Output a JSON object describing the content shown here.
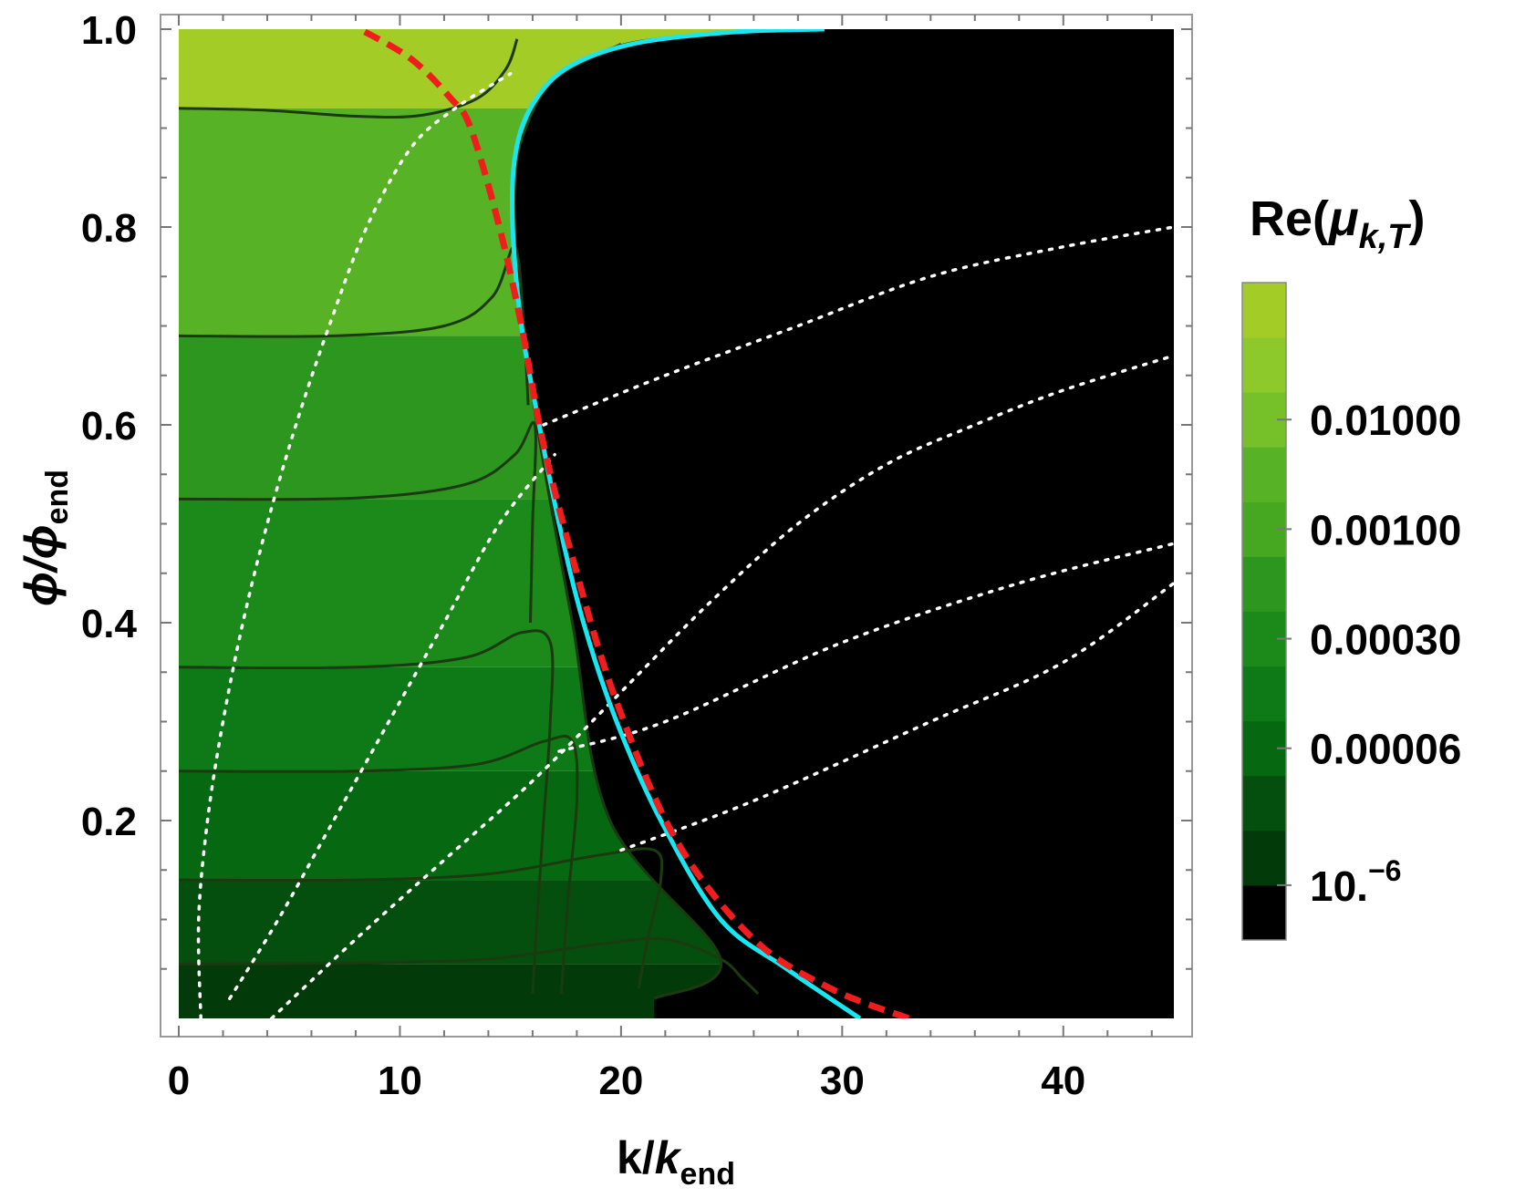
{
  "chart_data": {
    "type": "heatmap",
    "x": {
      "label_main": "k/",
      "label_italic": "k",
      "label_sub": "end",
      "range": [
        0,
        45
      ],
      "ticks": [
        0,
        10,
        20,
        30,
        40
      ],
      "minor_step": 2
    },
    "y": {
      "label_main": "ϕ/ϕ",
      "label_sub": "end",
      "range": [
        0.0,
        1.0
      ],
      "ticks": [
        0.2,
        0.4,
        0.6,
        0.8,
        1.0
      ],
      "tick_labels": [
        "0.2",
        "0.4",
        "0.6",
        "0.8",
        "1.0"
      ],
      "minor_step": 0.05
    },
    "colorbar": {
      "title_prefix": "Re(",
      "title_mu": "μ",
      "title_sub": "k,T",
      "title_suffix": ")",
      "bands": [
        "#000000",
        "#023a09",
        "#044f0d",
        "#066912",
        "#0d7a17",
        "#1b8a1b",
        "#2d961e",
        "#46a820",
        "#58b225",
        "#76c02a",
        "#8ec92c",
        "#a3cc27"
      ],
      "labels": [
        {
          "text": "0.01000",
          "at_band": 9.5
        },
        {
          "text": "0.00100",
          "at_band": 7.5
        },
        {
          "text": "0.00030",
          "at_band": 5.5
        },
        {
          "text": "0.00006",
          "at_band": 3.5
        },
        {
          "text": "10.",
          "sup": "−6",
          "at_band": 1.0
        }
      ]
    },
    "region_boundary": [
      [
        21.5,
        0.02
      ],
      [
        24.5,
        0.06
      ],
      [
        19.5,
        0.2
      ],
      [
        17.8,
        0.4
      ],
      [
        16.2,
        0.6
      ],
      [
        15.3,
        0.75
      ],
      [
        15.2,
        0.85
      ],
      [
        15.7,
        0.9
      ],
      [
        17.0,
        0.95
      ],
      [
        20.0,
        0.985
      ],
      [
        25.0,
        0.998
      ],
      [
        29.0,
        1.0
      ]
    ],
    "contours": [
      {
        "y0": 0.055,
        "pts": [
          [
            0,
            0.055
          ],
          [
            8,
            0.056
          ],
          [
            14,
            0.06
          ],
          [
            19,
            0.075
          ],
          [
            22,
            0.08
          ],
          [
            24.5,
            0.06
          ],
          [
            25.5,
            0.04
          ],
          [
            26.2,
            0.025
          ]
        ]
      },
      {
        "y0": 0.14,
        "pts": [
          [
            0,
            0.14
          ],
          [
            8,
            0.14
          ],
          [
            14,
            0.146
          ],
          [
            19,
            0.165
          ],
          [
            21.5,
            0.17
          ],
          [
            21.8,
            0.14
          ],
          [
            21.2,
            0.08
          ],
          [
            20.8,
            0.03
          ]
        ]
      },
      {
        "y0": 0.25,
        "pts": [
          [
            0,
            0.25
          ],
          [
            8,
            0.25
          ],
          [
            13.5,
            0.257
          ],
          [
            16.5,
            0.28
          ],
          [
            17.8,
            0.28
          ],
          [
            18,
            0.22
          ],
          [
            17.6,
            0.12
          ],
          [
            17.3,
            0.025
          ]
        ]
      },
      {
        "y0": 0.355,
        "pts": [
          [
            0,
            0.355
          ],
          [
            8,
            0.355
          ],
          [
            13,
            0.365
          ],
          [
            15.5,
            0.39
          ],
          [
            16.8,
            0.38
          ],
          [
            16.8,
            0.3
          ],
          [
            16.5,
            0.2
          ],
          [
            16.2,
            0.1
          ],
          [
            16.0,
            0.025
          ]
        ]
      },
      {
        "y0": 0.525,
        "pts": [
          [
            0,
            0.525
          ],
          [
            8,
            0.526
          ],
          [
            13,
            0.54
          ],
          [
            15.2,
            0.57
          ],
          [
            16.1,
            0.6
          ],
          [
            16.0,
            0.5
          ],
          [
            15.9,
            0.4
          ]
        ]
      },
      {
        "y0": 0.69,
        "pts": [
          [
            0,
            0.69
          ],
          [
            7,
            0.69
          ],
          [
            12,
            0.7
          ],
          [
            14.2,
            0.73
          ],
          [
            15.2,
            0.78
          ],
          [
            15.6,
            0.7
          ],
          [
            15.8,
            0.62
          ]
        ]
      },
      {
        "y0": 0.92,
        "pts": [
          [
            0,
            0.92
          ],
          [
            4,
            0.918
          ],
          [
            8,
            0.912
          ],
          [
            11,
            0.913
          ],
          [
            13.5,
            0.93
          ],
          [
            14.8,
            0.96
          ],
          [
            15.3,
            0.99
          ]
        ]
      }
    ],
    "cyan_curve": [
      [
        30.8,
        0.0
      ],
      [
        27.5,
        0.05
      ],
      [
        24.5,
        0.1
      ],
      [
        21.8,
        0.2
      ],
      [
        19.8,
        0.3
      ],
      [
        18.3,
        0.4
      ],
      [
        17.2,
        0.5
      ],
      [
        16.3,
        0.6
      ],
      [
        15.5,
        0.7
      ],
      [
        15.1,
        0.8
      ],
      [
        15.2,
        0.87
      ],
      [
        15.9,
        0.92
      ],
      [
        17.5,
        0.96
      ],
      [
        20.5,
        0.985
      ],
      [
        25,
        0.997
      ],
      [
        29.2,
        1.0
      ]
    ],
    "red_dashed_curve": [
      [
        33.0,
        0.0
      ],
      [
        29.5,
        0.03
      ],
      [
        26,
        0.08
      ],
      [
        22.5,
        0.18
      ],
      [
        19.8,
        0.32
      ],
      [
        18,
        0.45
      ],
      [
        16.5,
        0.58
      ],
      [
        15.5,
        0.7
      ],
      [
        14.5,
        0.8
      ],
      [
        13.2,
        0.9
      ],
      [
        12.3,
        0.93
      ],
      [
        10.5,
        0.97
      ],
      [
        8.2,
        1.0
      ]
    ],
    "white_dotted_curves": [
      {
        "pts": [
          [
            1.0,
            0.0
          ],
          [
            0.9,
            0.1
          ],
          [
            1.3,
            0.2
          ],
          [
            2.0,
            0.3
          ],
          [
            2.9,
            0.4
          ],
          [
            4.0,
            0.5
          ],
          [
            5.3,
            0.6
          ],
          [
            6.8,
            0.7
          ],
          [
            8.5,
            0.8
          ],
          [
            10.5,
            0.88
          ],
          [
            12.5,
            0.92
          ],
          [
            15,
            0.955
          ]
        ]
      },
      {
        "pts": [
          [
            2.3,
            0.02
          ],
          [
            4.5,
            0.1
          ],
          [
            7.0,
            0.2
          ],
          [
            9.5,
            0.3
          ],
          [
            12,
            0.4
          ],
          [
            14.5,
            0.5
          ],
          [
            17,
            0.57
          ]
        ]
      },
      {
        "pts": [
          [
            4.2,
            0.0
          ],
          [
            8,
            0.08
          ],
          [
            12,
            0.16
          ],
          [
            16,
            0.24
          ],
          [
            20,
            0.33
          ],
          [
            24,
            0.42
          ],
          [
            28,
            0.5
          ],
          [
            32,
            0.56
          ],
          [
            36,
            0.6
          ],
          [
            40,
            0.635
          ],
          [
            45,
            0.67
          ]
        ]
      },
      {
        "pts": [
          [
            16.5,
            0.6
          ],
          [
            22,
            0.65
          ],
          [
            28,
            0.7
          ],
          [
            34,
            0.75
          ],
          [
            40,
            0.78
          ],
          [
            45,
            0.8
          ]
        ]
      },
      {
        "pts": [
          [
            17.2,
            0.27
          ],
          [
            22,
            0.3
          ],
          [
            30,
            0.38
          ],
          [
            38,
            0.44
          ],
          [
            45,
            0.48
          ]
        ]
      },
      {
        "pts": [
          [
            20,
            0.17
          ],
          [
            26,
            0.22
          ],
          [
            34,
            0.3
          ],
          [
            40,
            0.36
          ],
          [
            45,
            0.44
          ]
        ]
      }
    ]
  }
}
